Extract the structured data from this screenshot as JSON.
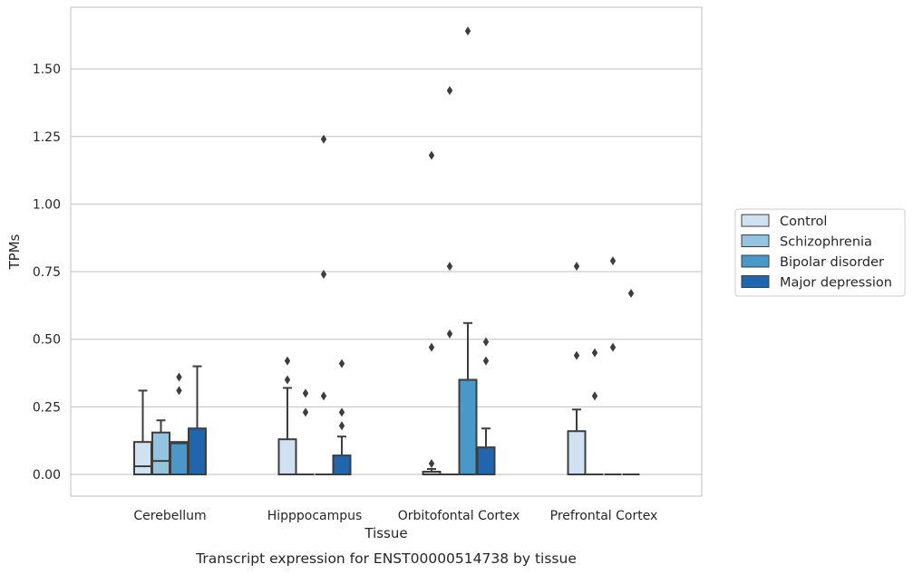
{
  "chart_data": {
    "type": "box",
    "xlabel": "Tissue",
    "ylabel": "TPMs",
    "caption": "Transcript expression for ENST00000514738 by tissue",
    "ylim": [
      -0.08,
      1.76
    ],
    "yticks": [
      0.0,
      0.25,
      0.5,
      0.75,
      1.0,
      1.25,
      1.5
    ],
    "ytick_labels": [
      "0.00",
      "0.25",
      "0.50",
      "0.75",
      "1.00",
      "1.25",
      "1.50"
    ],
    "grid": "horizontal",
    "legend_position": "right",
    "categories": [
      "Cerebellum",
      "Hipppocampus",
      "Orbitofontal Cortex",
      "Prefrontal Cortex"
    ],
    "series": [
      {
        "name": "Control",
        "color": "#d0e1f2",
        "boxes": [
          {
            "q1": 0.0,
            "median": 0.03,
            "q3": 0.12,
            "whisker_low": 0.0,
            "whisker_high": 0.31,
            "outliers": []
          },
          {
            "q1": 0.0,
            "median": 0.0,
            "q3": 0.13,
            "whisker_low": 0.0,
            "whisker_high": 0.32,
            "outliers": [
              0.35,
              0.42
            ]
          },
          {
            "q1": 0.0,
            "median": 0.0,
            "q3": 0.01,
            "whisker_low": 0.0,
            "whisker_high": 0.02,
            "outliers": [
              0.04,
              0.47,
              1.18
            ]
          },
          {
            "q1": 0.0,
            "median": 0.0,
            "q3": 0.16,
            "whisker_low": 0.0,
            "whisker_high": 0.24,
            "outliers": [
              0.44,
              0.77
            ]
          }
        ]
      },
      {
        "name": "Schizophrenia",
        "color": "#94c4df",
        "boxes": [
          {
            "q1": 0.0,
            "median": 0.05,
            "q3": 0.155,
            "whisker_low": 0.0,
            "whisker_high": 0.2,
            "outliers": []
          },
          {
            "q1": 0.0,
            "median": 0.0,
            "q3": 0.0,
            "whisker_low": 0.0,
            "whisker_high": 0.0,
            "outliers": [
              0.23,
              0.3
            ]
          },
          {
            "q1": 0.0,
            "median": 0.0,
            "q3": 0.0,
            "whisker_low": 0.0,
            "whisker_high": 0.0,
            "outliers": [
              0.52,
              0.77,
              1.42
            ]
          },
          {
            "q1": 0.0,
            "median": 0.0,
            "q3": 0.0,
            "whisker_low": 0.0,
            "whisker_high": 0.0,
            "outliers": [
              0.29,
              0.45
            ]
          }
        ]
      },
      {
        "name": "Bipolar disorder",
        "color": "#4a98c9",
        "boxes": [
          {
            "q1": 0.0,
            "median": 0.115,
            "q3": 0.12,
            "whisker_low": 0.0,
            "whisker_high": 0.12,
            "outliers": [
              0.31,
              0.36
            ]
          },
          {
            "q1": 0.0,
            "median": 0.0,
            "q3": 0.0,
            "whisker_low": 0.0,
            "whisker_high": 0.0,
            "outliers": [
              0.29,
              0.74,
              1.24
            ]
          },
          {
            "q1": 0.0,
            "median": 0.0,
            "q3": 0.35,
            "whisker_low": 0.0,
            "whisker_high": 0.56,
            "outliers": [
              1.64
            ]
          },
          {
            "q1": 0.0,
            "median": 0.0,
            "q3": 0.0,
            "whisker_low": 0.0,
            "whisker_high": 0.0,
            "outliers": [
              0.47,
              0.79
            ]
          }
        ]
      },
      {
        "name": "Major depression",
        "color": "#2166ac",
        "boxes": [
          {
            "q1": 0.0,
            "median": 0.0,
            "q3": 0.17,
            "whisker_low": 0.0,
            "whisker_high": 0.4,
            "outliers": []
          },
          {
            "q1": 0.0,
            "median": 0.0,
            "q3": 0.07,
            "whisker_low": 0.0,
            "whisker_high": 0.14,
            "outliers": [
              0.18,
              0.23,
              0.41
            ]
          },
          {
            "q1": 0.0,
            "median": 0.0,
            "q3": 0.1,
            "whisker_low": 0.0,
            "whisker_high": 0.17,
            "outliers": [
              0.42,
              0.49
            ]
          },
          {
            "q1": 0.0,
            "median": 0.0,
            "q3": 0.0,
            "whisker_low": 0.0,
            "whisker_high": 0.0,
            "outliers": [
              0.67
            ]
          }
        ]
      }
    ]
  }
}
